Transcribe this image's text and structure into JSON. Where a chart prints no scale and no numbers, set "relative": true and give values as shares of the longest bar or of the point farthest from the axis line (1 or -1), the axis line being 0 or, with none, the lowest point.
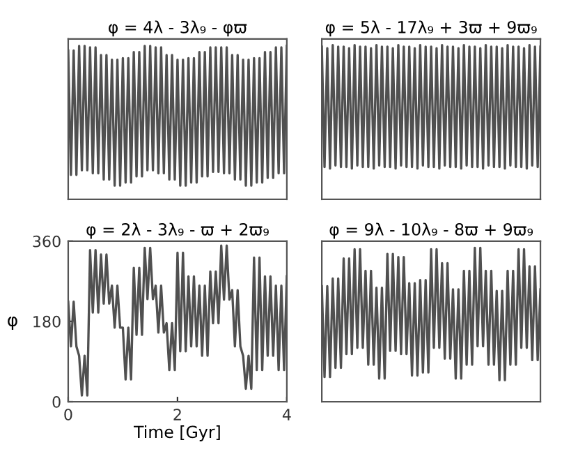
{
  "chart_data": [
    {
      "type": "line",
      "title": "φ = 4λ - 3λ₉ - φϖ",
      "relative": true,
      "categories": [
        null,
        null,
        null,
        null,
        null,
        null,
        null,
        null,
        null,
        null,
        null,
        null,
        null,
        null,
        null,
        null,
        null,
        null,
        null,
        null,
        null,
        null,
        null,
        null,
        null,
        null,
        null,
        null,
        null,
        null,
        null,
        null,
        null,
        null,
        null,
        null,
        null,
        null,
        null,
        null,
        null,
        null,
        null,
        null,
        null,
        null,
        null,
        null,
        null,
        null,
        null,
        null,
        null,
        null,
        null,
        null,
        null,
        null,
        null,
        null,
        null,
        null,
        null,
        null,
        null,
        null,
        null,
        null,
        null,
        null,
        null,
        null,
        null,
        null,
        null,
        null,
        null,
        null,
        null,
        null,
        null
      ],
      "series": [
        {
          "color": "#505050",
          "values": [
            0.97,
            0.16,
            0.97,
            0.16,
            1,
            0.19,
            1,
            0.19,
            0.99,
            0.17,
            0.99,
            0.17,
            0.94,
            0.13,
            0.94,
            0.13,
            0.91,
            0.09,
            0.91,
            0.09,
            0.92,
            0.11,
            0.92,
            0.11,
            0.96,
            0.15,
            0.96,
            0.15,
            1,
            0.19,
            1,
            0.19,
            0.99,
            0.17,
            0.99,
            0.17,
            0.94,
            0.13,
            0.94,
            0.13,
            0.91,
            0.09,
            0.91,
            0.09,
            0.92,
            0.11,
            0.92,
            0.11,
            0.96,
            0.15,
            0.96,
            0.15,
            0.99,
            0.18,
            0.99,
            0.18,
            0.99,
            0.17,
            0.99,
            0.17,
            0.94,
            0.13,
            0.94,
            0.13,
            0.91,
            0.09,
            0.91,
            0.09,
            0.92,
            0.11,
            0.92,
            0.11,
            0.96,
            0.14,
            0.96,
            0.14,
            0.99,
            0.17,
            0.99,
            0.17,
            1
          ]
        }
      ]
    },
    {
      "type": "line",
      "title": "φ = 5λ - 17λ₉ + 3ϖ + 9ϖ₉",
      "relative": true,
      "categories": [
        null,
        null,
        null,
        null,
        null,
        null,
        null,
        null,
        null,
        null,
        null,
        null,
        null,
        null,
        null,
        null,
        null,
        null,
        null,
        null,
        null,
        null,
        null,
        null,
        null,
        null,
        null,
        null,
        null,
        null,
        null,
        null,
        null,
        null,
        null,
        null,
        null,
        null,
        null,
        null,
        null,
        null,
        null,
        null,
        null,
        null,
        null,
        null,
        null,
        null,
        null,
        null,
        null,
        null,
        null,
        null,
        null,
        null,
        null,
        null,
        null,
        null,
        null,
        null,
        null,
        null,
        null,
        null,
        null,
        null,
        null,
        null,
        null,
        null,
        null,
        null,
        null,
        null,
        null,
        null,
        null
      ],
      "series": [
        {
          "color": "#505050",
          "values": [
            0.99,
            0.21,
            0.98,
            0.2,
            1,
            0.22,
            0.99,
            0.21,
            0.99,
            0.21,
            0.98,
            0.2,
            1,
            0.22,
            0.99,
            0.21,
            0.99,
            0.21,
            0.98,
            0.2,
            1,
            0.22,
            0.99,
            0.21,
            0.99,
            0.21,
            0.98,
            0.2,
            1,
            0.22,
            0.99,
            0.21,
            0.99,
            0.21,
            0.98,
            0.2,
            1,
            0.22,
            0.99,
            0.21,
            0.99,
            0.21,
            0.98,
            0.2,
            1,
            0.22,
            0.99,
            0.21,
            0.99,
            0.21,
            0.98,
            0.2,
            1,
            0.22,
            0.99,
            0.21,
            0.99,
            0.21,
            0.98,
            0.2,
            1,
            0.22,
            0.99,
            0.21,
            0.99,
            0.21,
            0.98,
            0.2,
            1,
            0.22,
            0.99,
            0.21,
            0.99,
            0.21,
            0.98,
            0.2,
            1,
            0.22,
            0.99,
            0.21,
            0.99
          ]
        }
      ]
    },
    {
      "type": "line",
      "title": "φ = 2λ - 3λ₉ - ϖ + 2ϖ₉",
      "xlabel": "Time [Gyr]",
      "ylabel": "φ",
      "xlim": [
        0,
        4
      ],
      "ylim": [
        0,
        360
      ],
      "xticks": [
        0,
        2,
        4
      ],
      "yticks": [
        0,
        180,
        360
      ],
      "series": [
        {
          "color": "#505050",
          "x": [
            0,
            0.05,
            0.1,
            0.15,
            0.2,
            0.25,
            0.3,
            0.35,
            0.4,
            0.45,
            0.5,
            0.55,
            0.6,
            0.65,
            0.7,
            0.75,
            0.8,
            0.85,
            0.9,
            0.95,
            1,
            1.05,
            1.1,
            1.15,
            1.2,
            1.25,
            1.3,
            1.35,
            1.4,
            1.45,
            1.5,
            1.55,
            1.6,
            1.65,
            1.7,
            1.75,
            1.8,
            1.85,
            1.9,
            1.95,
            2,
            2.05,
            2.1,
            2.15,
            2.2,
            2.25,
            2.3,
            2.35,
            2.4,
            2.45,
            2.5,
            2.55,
            2.6,
            2.65,
            2.7,
            2.75,
            2.8,
            2.85,
            2.9,
            2.95,
            3,
            3.05,
            3.1,
            3.15,
            3.2,
            3.25,
            3.3,
            3.35,
            3.4,
            3.45,
            3.5,
            3.55,
            3.6,
            3.65,
            3.7,
            3.75,
            3.8,
            3.85,
            3.9,
            3.95,
            4
          ],
          "values": [
            224,
            124,
            224,
            124,
            103,
            14,
            103,
            14,
            340,
            200,
            340,
            200,
            330,
            220,
            330,
            220,
            260,
            166,
            260,
            166,
            166,
            50,
            166,
            50,
            300,
            150,
            300,
            150,
            345,
            230,
            345,
            230,
            260,
            155,
            260,
            155,
            176,
            71,
            176,
            71,
            334,
            113,
            334,
            113,
            281,
            124,
            281,
            124,
            260,
            103,
            260,
            103,
            292,
            176,
            292,
            176,
            350,
            229,
            350,
            229,
            250,
            124,
            250,
            124,
            103,
            29,
            103,
            29,
            323,
            71,
            323,
            71,
            281,
            103,
            281,
            103,
            260,
            71,
            260,
            71,
            281
          ]
        }
      ]
    },
    {
      "type": "line",
      "title": "φ = 9λ - 10λ₉ - 8ϖ + 9ϖ₉",
      "relative": true,
      "categories": [
        null,
        null,
        null,
        null,
        null,
        null,
        null,
        null,
        null,
        null,
        null,
        null,
        null,
        null,
        null,
        null,
        null,
        null,
        null,
        null,
        null,
        null,
        null,
        null,
        null,
        null,
        null,
        null,
        null,
        null,
        null,
        null,
        null,
        null,
        null,
        null,
        null,
        null,
        null,
        null,
        null,
        null,
        null,
        null,
        null,
        null,
        null,
        null,
        null,
        null,
        null,
        null,
        null,
        null,
        null,
        null,
        null,
        null,
        null,
        null,
        null,
        null,
        null,
        null,
        null,
        null,
        null,
        null,
        null,
        null,
        null,
        null,
        null,
        null,
        null,
        null,
        null,
        null,
        null,
        null,
        null
      ],
      "series": [
        {
          "color": "#505050",
          "values": [
            0.75,
            0.16,
            0.75,
            0.16,
            0.8,
            0.22,
            0.8,
            0.22,
            0.93,
            0.31,
            0.93,
            0.31,
            0.99,
            0.35,
            0.99,
            0.35,
            0.85,
            0.24,
            0.85,
            0.24,
            0.74,
            0.15,
            0.74,
            0.15,
            0.96,
            0.33,
            0.96,
            0.33,
            0.94,
            0.31,
            0.94,
            0.31,
            0.77,
            0.17,
            0.77,
            0.17,
            0.79,
            0.19,
            0.79,
            0.19,
            0.99,
            0.35,
            0.99,
            0.35,
            0.9,
            0.28,
            0.9,
            0.28,
            0.73,
            0.15,
            0.73,
            0.15,
            0.85,
            0.24,
            0.85,
            0.24,
            1,
            0.36,
            1,
            0.36,
            0.85,
            0.24,
            0.85,
            0.24,
            0.72,
            0.14,
            0.72,
            0.14,
            0.85,
            0.24,
            0.85,
            0.24,
            0.99,
            0.35,
            0.99,
            0.35,
            0.88,
            0.27,
            0.88,
            0.27,
            0.73
          ]
        }
      ]
    }
  ]
}
